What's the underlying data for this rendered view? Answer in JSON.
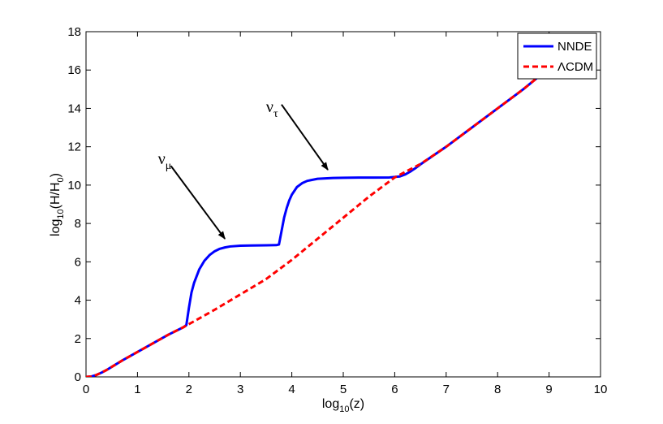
{
  "chart_data": {
    "type": "line",
    "xlabel": {
      "base": "log",
      "sub": "10",
      "rest": "(z)"
    },
    "ylabel": {
      "base": "log",
      "sub": "10",
      "mid": "(H/H",
      "sub2": "0",
      "end": ")"
    },
    "xlim": [
      0,
      10
    ],
    "ylim": [
      0,
      18
    ],
    "xticks": [
      0,
      1,
      2,
      3,
      4,
      5,
      6,
      7,
      8,
      9,
      10
    ],
    "yticks": [
      0,
      2,
      4,
      6,
      8,
      10,
      12,
      14,
      16,
      18
    ],
    "grid": false,
    "legend_position": "top-right",
    "series": [
      {
        "name": "NNDE",
        "color": "#0000ff",
        "style": "solid",
        "x": [
          0,
          0.1,
          0.2,
          0.3,
          0.4,
          0.5,
          0.7,
          1.0,
          1.3,
          1.6,
          1.9,
          1.95,
          2.0,
          2.05,
          2.1,
          2.2,
          2.3,
          2.4,
          2.5,
          2.6,
          2.7,
          2.8,
          3.0,
          3.2,
          3.5,
          3.7,
          3.75,
          3.8,
          3.85,
          3.9,
          3.95,
          4.0,
          4.1,
          4.2,
          4.3,
          4.5,
          4.8,
          5.0,
          5.3,
          5.6,
          5.9,
          6.1,
          6.2,
          6.3,
          6.4,
          6.5,
          7.0,
          7.5,
          8.0,
          8.5,
          9.0
        ],
        "y": [
          0,
          0.02,
          0.1,
          0.22,
          0.36,
          0.52,
          0.85,
          1.3,
          1.75,
          2.2,
          2.6,
          2.7,
          3.6,
          4.4,
          4.9,
          5.6,
          6.05,
          6.35,
          6.55,
          6.68,
          6.75,
          6.8,
          6.84,
          6.85,
          6.86,
          6.87,
          6.9,
          7.6,
          8.3,
          8.8,
          9.2,
          9.5,
          9.9,
          10.1,
          10.22,
          10.33,
          10.37,
          10.38,
          10.39,
          10.39,
          10.4,
          10.45,
          10.55,
          10.7,
          10.88,
          11.08,
          12.0,
          13.0,
          14.0,
          15.0,
          16.1
        ]
      },
      {
        "name": "ΛCDM",
        "color": "#ff0000",
        "style": "dashed",
        "x": [
          0,
          0.1,
          0.2,
          0.3,
          0.4,
          0.5,
          0.7,
          1.0,
          1.3,
          1.6,
          1.9,
          2.0,
          2.5,
          3.0,
          3.5,
          4.0,
          4.5,
          5.0,
          5.5,
          6.0,
          6.5,
          7.0,
          7.5,
          8.0,
          8.5,
          9.0
        ],
        "y": [
          0,
          0.02,
          0.1,
          0.22,
          0.36,
          0.52,
          0.85,
          1.3,
          1.75,
          2.2,
          2.6,
          2.75,
          3.5,
          4.3,
          5.1,
          6.1,
          7.2,
          8.3,
          9.4,
          10.4,
          11.1,
          12.0,
          13.0,
          14.0,
          15.0,
          16.1
        ]
      }
    ],
    "annotations": [
      {
        "text": "ν",
        "sub": "μ",
        "text_at": [
          1.4,
          11.1
        ],
        "arrow_from": [
          1.65,
          11.0
        ],
        "arrow_to": [
          2.7,
          7.2
        ]
      },
      {
        "text": "ν",
        "sub": "τ",
        "text_at": [
          3.5,
          13.8
        ],
        "arrow_from": [
          3.8,
          14.2
        ],
        "arrow_to": [
          4.7,
          10.8
        ]
      }
    ]
  }
}
